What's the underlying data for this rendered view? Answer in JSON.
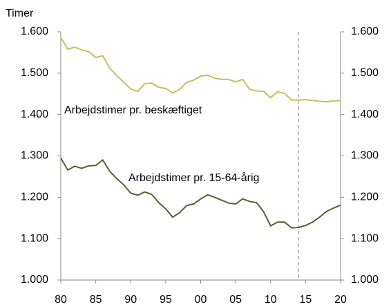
{
  "chart_data": {
    "type": "line",
    "y_label": "Timer",
    "x": [
      1980,
      1981,
      1982,
      1983,
      1984,
      1985,
      1986,
      1987,
      1988,
      1989,
      1990,
      1991,
      1992,
      1993,
      1994,
      1995,
      1996,
      1997,
      1998,
      1999,
      2000,
      2001,
      2002,
      2003,
      2004,
      2005,
      2006,
      2007,
      2008,
      2009,
      2010,
      2011,
      2012,
      2013,
      2014,
      2015,
      2016,
      2017,
      2018,
      2019,
      2020
    ],
    "series": [
      {
        "color": "#c8be5a",
        "values": [
          1586,
          1558,
          1563,
          1556,
          1552,
          1538,
          1542,
          1512,
          1494,
          1478,
          1462,
          1456,
          1475,
          1476,
          1466,
          1463,
          1452,
          1461,
          1478,
          1483,
          1493,
          1495,
          1488,
          1485,
          1485,
          1479,
          1485,
          1461,
          1457,
          1456,
          1441,
          1455,
          1451,
          1435,
          1435,
          1436,
          1434,
          1432,
          1431,
          1433,
          1434
        ]
      },
      {
        "color": "#5e5b2f",
        "values": [
          1295,
          1266,
          1275,
          1270,
          1276,
          1277,
          1290,
          1263,
          1245,
          1230,
          1210,
          1205,
          1213,
          1207,
          1187,
          1172,
          1152,
          1163,
          1180,
          1184,
          1196,
          1206,
          1200,
          1193,
          1186,
          1184,
          1196,
          1190,
          1187,
          1165,
          1131,
          1140,
          1140,
          1126,
          1127,
          1132,
          1140,
          1152,
          1166,
          1174,
          1181
        ]
      }
    ],
    "annotations": [
      "Arbejdstimer pr. beskæftiget",
      "Arbejdstimer pr. 15-64-årig"
    ],
    "vline_x": 2014,
    "xlim": [
      1980,
      2020
    ],
    "xticks": [
      {
        "value": 1980,
        "label": "80"
      },
      {
        "value": 1985,
        "label": "85"
      },
      {
        "value": 1990,
        "label": "90"
      },
      {
        "value": 1995,
        "label": "95"
      },
      {
        "value": 2000,
        "label": "00"
      },
      {
        "value": 2005,
        "label": "05"
      },
      {
        "value": 2010,
        "label": "10"
      },
      {
        "value": 2015,
        "label": "15"
      },
      {
        "value": 2020,
        "label": "20"
      }
    ],
    "ylim": [
      1000,
      1600
    ],
    "yticks": [
      {
        "value": 1000,
        "label": "1.000"
      },
      {
        "value": 1100,
        "label": "1.100"
      },
      {
        "value": 1200,
        "label": "1.200"
      },
      {
        "value": 1300,
        "label": "1.300"
      },
      {
        "value": 1400,
        "label": "1.400"
      },
      {
        "value": 1500,
        "label": "1.500"
      },
      {
        "value": 1600,
        "label": "1.600"
      }
    ]
  }
}
